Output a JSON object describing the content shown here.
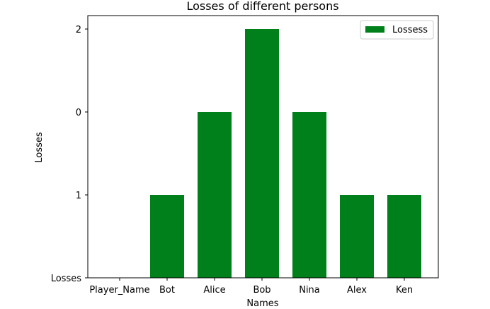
{
  "chart_data": {
    "type": "bar",
    "title": "Losses of different persons",
    "xlabel": "Names",
    "ylabel": "Losses",
    "categories": [
      "Player_Name",
      "Bot",
      "Alice",
      "Bob",
      "Nina",
      "Alex",
      "Ken"
    ],
    "y_categories": [
      "Losses",
      "1",
      "0",
      "2"
    ],
    "values": [
      "Losses",
      "1",
      "0",
      "2",
      "0",
      "1",
      "1"
    ],
    "series": [
      {
        "name": "Lossess",
        "color": "#00801a"
      }
    ],
    "legend_position": "top-right",
    "grid": false
  }
}
